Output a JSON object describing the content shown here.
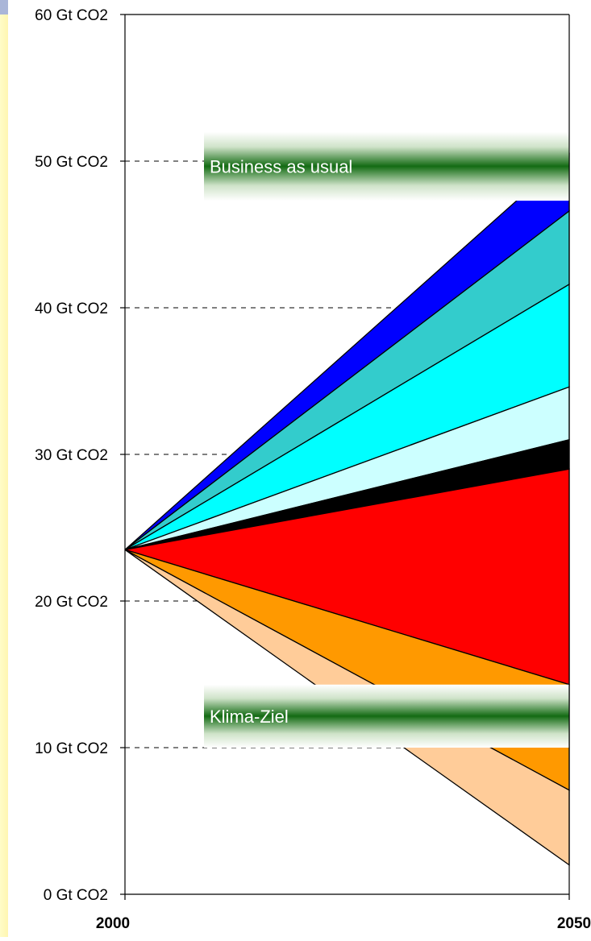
{
  "chart_data": {
    "type": "area",
    "x": [
      2000,
      2050
    ],
    "xlabels": [
      "2000",
      "2050"
    ],
    "ylim": [
      0,
      60
    ],
    "yticks": [
      {
        "value": 0,
        "label": "0 Gt CO2"
      },
      {
        "value": 10,
        "label": "10 Gt CO2"
      },
      {
        "value": 20,
        "label": "20 Gt CO2"
      },
      {
        "value": 30,
        "label": "30 Gt CO2"
      },
      {
        "value": 40,
        "label": "40 Gt CO2"
      },
      {
        "value": 50,
        "label": "50 Gt CO2"
      },
      {
        "value": 60,
        "label": "60 Gt CO2"
      }
    ],
    "start_value": 23.5,
    "wedges": [
      {
        "color": "#0000ff",
        "upper_2050": 50.5,
        "lower_2050": 46.6
      },
      {
        "color": "#33cccc",
        "upper_2050": 46.6,
        "lower_2050": 41.6
      },
      {
        "color": "#00ffff",
        "upper_2050": 41.6,
        "lower_2050": 34.6
      },
      {
        "color": "#ccffff",
        "upper_2050": 34.6,
        "lower_2050": 31.0
      },
      {
        "color": "#000000",
        "upper_2050": 31.0,
        "lower_2050": 29.0
      },
      {
        "color": "#ff0000",
        "upper_2050": 29.0,
        "lower_2050": 14.3
      },
      {
        "color": "#ff9900",
        "upper_2050": 14.3,
        "lower_2050": 7.1
      },
      {
        "color": "#ffcc99",
        "upper_2050": 7.1,
        "lower_2050": 2.0
      }
    ],
    "annotations": [
      {
        "text": "Business as usual",
        "y_low": 47.3,
        "y_high": 52.0
      },
      {
        "text": "Klima-Ziel",
        "y_low": 10.0,
        "y_high": 14.3
      }
    ],
    "grid": "dashed horizontal lines left of data"
  }
}
